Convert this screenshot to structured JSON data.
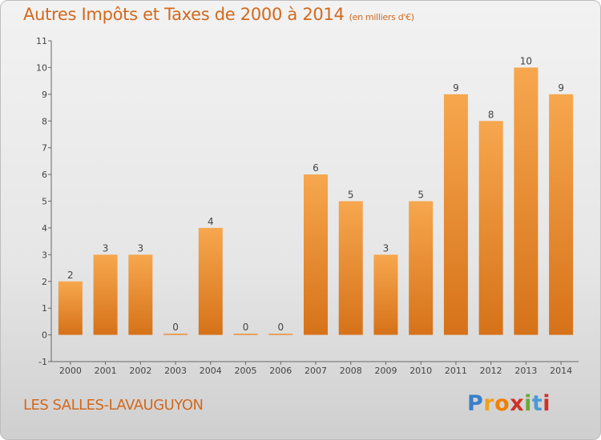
{
  "title": "Autres Impôts et Taxes de 2000 à 2014",
  "title_unit": "(en milliers d'€)",
  "city": "LES SALLES-LAVAUGUYON",
  "logo": {
    "letters": [
      "P",
      "r",
      "o",
      "x",
      "i",
      "t",
      "i"
    ],
    "colors": [
      "#3a7fc8",
      "#f0a020",
      "#f08000",
      "#d03028",
      "#6aa83a",
      "#4a9ad8",
      "#d03028"
    ]
  },
  "colors": {
    "bar_light": "#f7a74e",
    "bar_dark": "#d67219",
    "text": "#d2691e"
  },
  "chart_data": {
    "type": "bar",
    "title": "Autres Impôts et Taxes de 2000 à 2014",
    "categories": [
      "2000",
      "2001",
      "2002",
      "2003",
      "2004",
      "2005",
      "2006",
      "2007",
      "2008",
      "2009",
      "2010",
      "2011",
      "2012",
      "2013",
      "2014"
    ],
    "values": [
      2,
      3,
      3,
      0,
      4,
      0,
      0,
      6,
      5,
      3,
      5,
      9,
      8,
      10,
      9
    ],
    "ylim": [
      -1,
      11
    ],
    "yticks": [
      "-1",
      "0",
      "1",
      "2",
      "3",
      "4",
      "5",
      "6",
      "7",
      "8",
      "9",
      "10",
      "11"
    ],
    "xlabel": "",
    "ylabel": "",
    "grid": false,
    "data_labels": true
  }
}
